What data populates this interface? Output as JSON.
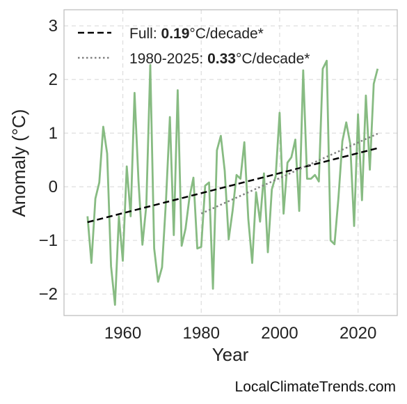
{
  "chart_data": {
    "type": "line",
    "xlabel": "Year",
    "ylabel": "Anomaly (°C)",
    "xlim": [
      1945,
      2030
    ],
    "ylim": [
      -2.4,
      3.3
    ],
    "xticks": [
      1960,
      1980,
      2000,
      2020
    ],
    "yticks": [
      -2,
      -1,
      0,
      1,
      2,
      3
    ],
    "ytick_labels": [
      "−2",
      "−1",
      "0",
      "1",
      "2",
      "3"
    ],
    "grid": true,
    "legend_position": "top-left",
    "colors": {
      "series": "#87bb82",
      "full_trend": "#000000",
      "recent_trend": "#808080"
    },
    "x": [
      1951,
      1952,
      1953,
      1954,
      1955,
      1956,
      1957,
      1958,
      1959,
      1960,
      1961,
      1962,
      1963,
      1964,
      1965,
      1966,
      1967,
      1968,
      1969,
      1970,
      1971,
      1972,
      1973,
      1974,
      1975,
      1976,
      1977,
      1978,
      1979,
      1980,
      1981,
      1982,
      1983,
      1984,
      1985,
      1986,
      1987,
      1988,
      1989,
      1990,
      1991,
      1992,
      1993,
      1994,
      1995,
      1996,
      1997,
      1998,
      1999,
      2000,
      2001,
      2002,
      2003,
      2004,
      2005,
      2006,
      2007,
      2008,
      2009,
      2010,
      2011,
      2012,
      2013,
      2014,
      2015,
      2016,
      2017,
      2018,
      2019,
      2020,
      2021,
      2022,
      2023,
      2024,
      2025
    ],
    "values": [
      -0.55,
      -1.42,
      -0.22,
      0.08,
      1.12,
      0.62,
      -1.48,
      -2.2,
      -0.55,
      -1.38,
      0.38,
      -0.55,
      1.75,
      0.1,
      -1.08,
      -0.35,
      2.27,
      -1.15,
      -1.77,
      -1.5,
      -0.28,
      1.3,
      -0.9,
      1.8,
      -1.1,
      -0.78,
      -0.2,
      0.17,
      -1.15,
      -1.12,
      0.02,
      0.08,
      -1.9,
      0.68,
      0.95,
      0.3,
      -0.98,
      -0.45,
      0.22,
      0.15,
      0.83,
      -0.6,
      -1.42,
      -0.1,
      -0.65,
      0.25,
      -1.22,
      -0.05,
      0.2,
      1.38,
      -0.5,
      0.45,
      0.55,
      0.88,
      -0.45,
      2.17,
      0.15,
      0.15,
      0.22,
      0.1,
      2.2,
      2.35,
      -1.0,
      -1.07,
      -0.2,
      0.85,
      1.2,
      0.8,
      -0.73,
      1.35,
      -0.25,
      1.7,
      0.32,
      1.92,
      2.2
    ],
    "trends": [
      {
        "label_prefix": "Full: ",
        "label_value": "0.19",
        "label_suffix": "°C/decade*",
        "x": [
          1951,
          2025
        ],
        "y": [
          -0.66,
          0.72
        ],
        "style": "dashed"
      },
      {
        "label_prefix": "1980-2025: ",
        "label_value": "0.33",
        "label_suffix": "°C/decade*",
        "x": [
          1980,
          2025
        ],
        "y": [
          -0.5,
          0.99
        ],
        "style": "dotted"
      }
    ]
  },
  "watermark": "LocalClimateTrends.com"
}
